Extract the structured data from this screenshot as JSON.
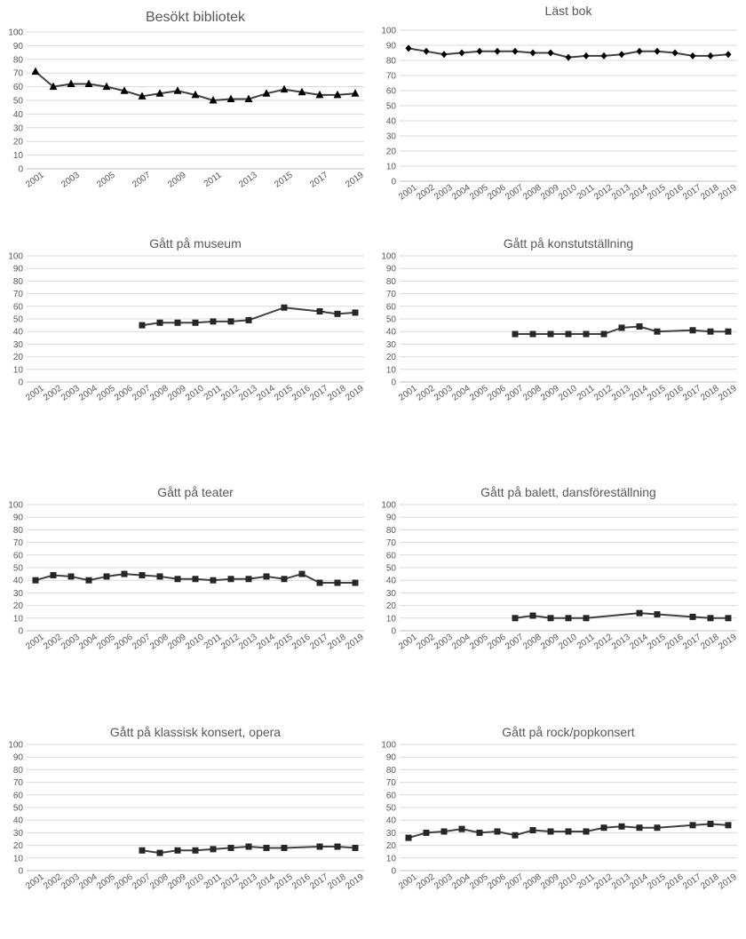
{
  "chart_data": [
    {
      "type": "line",
      "title": "Besökt bibliotek",
      "marker": "triangle",
      "x": [
        "2001",
        "2002",
        "2003",
        "2004",
        "2005",
        "2006",
        "2007",
        "2008",
        "2009",
        "2010",
        "2011",
        "2012",
        "2013",
        "2014",
        "2015",
        "2016",
        "2017",
        "2018",
        "2019"
      ],
      "x_tick_labels": [
        "2001",
        "2003",
        "2005",
        "2007",
        "2009",
        "2011",
        "2013",
        "2015",
        "2017",
        "2019"
      ],
      "values": [
        71,
        60,
        62,
        62,
        60,
        57,
        53,
        55,
        57,
        54,
        50,
        51,
        51,
        55,
        58,
        56,
        54,
        54,
        55
      ],
      "ylim": [
        0,
        100
      ],
      "yticks": [
        0,
        10,
        20,
        30,
        40,
        50,
        60,
        70,
        80,
        90,
        100
      ],
      "grid": true,
      "legend": "none"
    },
    {
      "type": "line",
      "title": "Läst bok",
      "marker": "diamond",
      "x": [
        "2001",
        "2002",
        "2003",
        "2004",
        "2005",
        "2006",
        "2007",
        "2008",
        "2009",
        "2010",
        "2011",
        "2012",
        "2013",
        "2014",
        "2015",
        "2016",
        "2017",
        "2018",
        "2019"
      ],
      "x_tick_labels": [
        "2001",
        "2002",
        "2003",
        "2004",
        "2005",
        "2006",
        "2007",
        "2008",
        "2009",
        "2010",
        "2011",
        "2012",
        "2013",
        "2014",
        "2015",
        "2016",
        "2017",
        "2018",
        "2019"
      ],
      "values": [
        88,
        86,
        84,
        85,
        86,
        86,
        86,
        85,
        85,
        82,
        83,
        83,
        84,
        86,
        86,
        85,
        83,
        83,
        84
      ],
      "ylim": [
        0,
        100
      ],
      "yticks": [
        0,
        10,
        20,
        30,
        40,
        50,
        60,
        70,
        80,
        90,
        100
      ],
      "grid": true,
      "legend": "none"
    },
    {
      "type": "line",
      "title": "Gått på museum",
      "marker": "square",
      "x": [
        "2001",
        "2002",
        "2003",
        "2004",
        "2005",
        "2006",
        "2007",
        "2008",
        "2009",
        "2010",
        "2011",
        "2012",
        "2013",
        "2014",
        "2015",
        "2016",
        "2017",
        "2018",
        "2019"
      ],
      "x_tick_labels": [
        "2001",
        "2002",
        "2003",
        "2004",
        "2005",
        "2006",
        "2007",
        "2008",
        "2009",
        "2010",
        "2011",
        "2012",
        "2013",
        "2014",
        "2015",
        "2016",
        "2017",
        "2018",
        "2019"
      ],
      "values": [
        null,
        null,
        null,
        null,
        null,
        null,
        45,
        47,
        47,
        47,
        48,
        48,
        49,
        null,
        59,
        null,
        56,
        54,
        55
      ],
      "ylim": [
        0,
        100
      ],
      "yticks": [
        0,
        10,
        20,
        30,
        40,
        50,
        60,
        70,
        80,
        90,
        100
      ],
      "grid": true,
      "legend": "none"
    },
    {
      "type": "line",
      "title": "Gått på konstutställning",
      "marker": "square",
      "x": [
        "2001",
        "2002",
        "2003",
        "2004",
        "2005",
        "2006",
        "2007",
        "2008",
        "2009",
        "2010",
        "2011",
        "2012",
        "2013",
        "2014",
        "2015",
        "2016",
        "2017",
        "2018",
        "2019"
      ],
      "x_tick_labels": [
        "2001",
        "2002",
        "2003",
        "2004",
        "2005",
        "2006",
        "2007",
        "2008",
        "2009",
        "2010",
        "2011",
        "2012",
        "2013",
        "2014",
        "2015",
        "2016",
        "2017",
        "2018",
        "2019"
      ],
      "values": [
        null,
        null,
        null,
        null,
        null,
        null,
        38,
        38,
        38,
        38,
        38,
        38,
        43,
        44,
        40,
        null,
        41,
        40,
        40
      ],
      "ylim": [
        0,
        100
      ],
      "yticks": [
        0,
        10,
        20,
        30,
        40,
        50,
        60,
        70,
        80,
        90,
        100
      ],
      "grid": true,
      "legend": "none"
    },
    {
      "type": "line",
      "title": "Gått på teater",
      "marker": "square",
      "x": [
        "2001",
        "2002",
        "2003",
        "2004",
        "2005",
        "2006",
        "2007",
        "2008",
        "2009",
        "2010",
        "2011",
        "2012",
        "2013",
        "2014",
        "2015",
        "2016",
        "2017",
        "2018",
        "2019"
      ],
      "x_tick_labels": [
        "2001",
        "2002",
        "2003",
        "2004",
        "2005",
        "2006",
        "2007",
        "2008",
        "2009",
        "2010",
        "2011",
        "2012",
        "2013",
        "2014",
        "2015",
        "2016",
        "2017",
        "2018",
        "2019"
      ],
      "values": [
        40,
        44,
        43,
        40,
        43,
        45,
        44,
        43,
        41,
        41,
        40,
        41,
        41,
        43,
        41,
        45,
        38,
        38,
        38
      ],
      "ylim": [
        0,
        100
      ],
      "yticks": [
        0,
        10,
        20,
        30,
        40,
        50,
        60,
        70,
        80,
        90,
        100
      ],
      "grid": true,
      "legend": "none"
    },
    {
      "type": "line",
      "title": "Gått på balett, dansföreställning",
      "marker": "square",
      "x": [
        "2001",
        "2002",
        "2003",
        "2004",
        "2005",
        "2006",
        "2007",
        "2008",
        "2009",
        "2010",
        "2011",
        "2012",
        "2013",
        "2014",
        "2015",
        "2016",
        "2017",
        "2018",
        "2019"
      ],
      "x_tick_labels": [
        "2001",
        "2002",
        "2003",
        "2004",
        "2005",
        "2006",
        "2007",
        "2008",
        "2009",
        "2010",
        "2011",
        "2012",
        "2013",
        "2014",
        "2015",
        "2016",
        "2017",
        "2018",
        "2019"
      ],
      "values": [
        null,
        null,
        null,
        null,
        null,
        null,
        10,
        12,
        10,
        10,
        10,
        null,
        null,
        14,
        13,
        null,
        11,
        10,
        10
      ],
      "ylim": [
        0,
        100
      ],
      "yticks": [
        0,
        10,
        20,
        30,
        40,
        50,
        60,
        70,
        80,
        90,
        100
      ],
      "grid": true,
      "legend": "none"
    },
    {
      "type": "line",
      "title": "Gått på klassisk konsert, opera",
      "marker": "square",
      "x": [
        "2001",
        "2002",
        "2003",
        "2004",
        "2005",
        "2006",
        "2007",
        "2008",
        "2009",
        "2010",
        "2011",
        "2012",
        "2013",
        "2014",
        "2015",
        "2016",
        "2017",
        "2018",
        "2019"
      ],
      "x_tick_labels": [
        "2001",
        "2002",
        "2003",
        "2004",
        "2005",
        "2006",
        "2007",
        "2008",
        "2009",
        "2010",
        "2011",
        "2012",
        "2013",
        "2014",
        "2015",
        "2016",
        "2017",
        "2018",
        "2019"
      ],
      "values": [
        null,
        null,
        null,
        null,
        null,
        null,
        16,
        14,
        16,
        16,
        17,
        18,
        19,
        18,
        18,
        null,
        19,
        19,
        18
      ],
      "ylim": [
        0,
        100
      ],
      "yticks": [
        0,
        10,
        20,
        30,
        40,
        50,
        60,
        70,
        80,
        90,
        100
      ],
      "grid": true,
      "legend": "none"
    },
    {
      "type": "line",
      "title": "Gått på rock/popkonsert",
      "marker": "square",
      "x": [
        "2001",
        "2002",
        "2003",
        "2004",
        "2005",
        "2006",
        "2007",
        "2008",
        "2009",
        "2010",
        "2011",
        "2012",
        "2013",
        "2014",
        "2015",
        "2016",
        "2017",
        "2018",
        "2019"
      ],
      "x_tick_labels": [
        "2001",
        "2002",
        "2003",
        "2004",
        "2005",
        "2006",
        "2007",
        "2008",
        "2009",
        "2010",
        "2011",
        "2012",
        "2013",
        "2014",
        "2015",
        "2016",
        "2017",
        "2018",
        "2019"
      ],
      "values": [
        26,
        30,
        31,
        33,
        30,
        31,
        28,
        32,
        31,
        31,
        31,
        34,
        35,
        34,
        34,
        null,
        36,
        37,
        36
      ],
      "ylim": [
        0,
        100
      ],
      "yticks": [
        0,
        10,
        20,
        30,
        40,
        50,
        60,
        70,
        80,
        90,
        100
      ],
      "grid": true,
      "legend": "none"
    }
  ],
  "colors": {
    "line": "#404040",
    "marker": "#262626",
    "grid": "#d9d9d9",
    "text": "#595959"
  }
}
